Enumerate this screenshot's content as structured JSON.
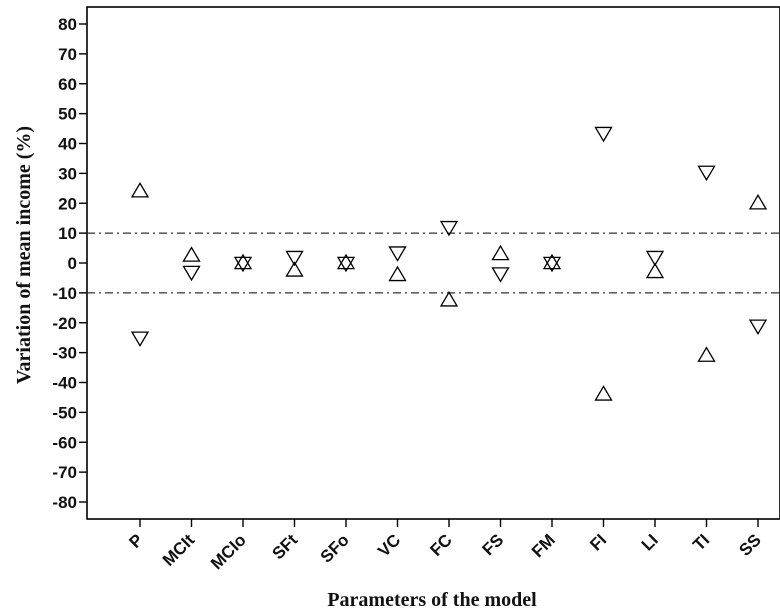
{
  "chart_data": {
    "type": "scatter",
    "xlabel": "Parameters of the model",
    "ylabel": "Variation of mean income (%)",
    "categories": [
      "P",
      "MCIt",
      "MCIo",
      "SFt",
      "SFo",
      "VC",
      "FC",
      "FS",
      "FM",
      "FI",
      "LI",
      "TI",
      "SS"
    ],
    "ylim": [
      -85,
      85
    ],
    "yticks": [
      -80,
      -70,
      -60,
      -50,
      -40,
      -30,
      -20,
      -10,
      0,
      10,
      20,
      30,
      40,
      50,
      60,
      70,
      80
    ],
    "reference_lines": [
      10,
      -10
    ],
    "series": [
      {
        "marker": "triangle-up",
        "values": [
          24,
          2.5,
          0,
          -2.5,
          0,
          -4,
          -12.5,
          3,
          0,
          -44,
          -3,
          -31,
          20
        ]
      },
      {
        "marker": "triangle-down",
        "values": [
          -25,
          -3,
          0,
          2,
          0,
          3.5,
          12,
          -3.5,
          0,
          43.5,
          2,
          30.5,
          -21
        ]
      }
    ]
  }
}
